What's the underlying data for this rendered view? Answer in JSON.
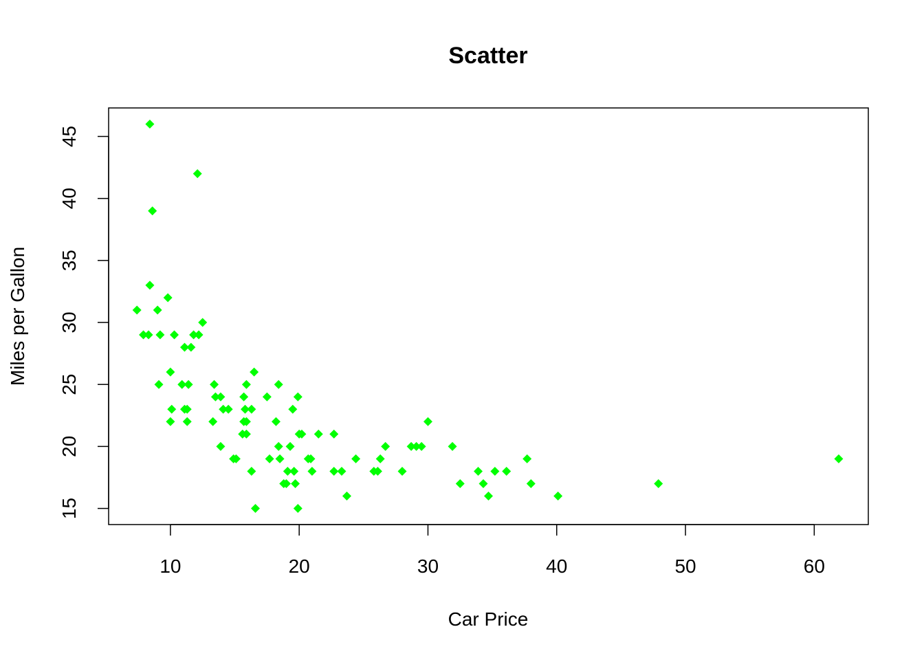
{
  "chart_data": {
    "type": "scatter",
    "title": "Scatter",
    "xlabel": "Car Price",
    "ylabel": "Miles per Gallon",
    "xlim": [
      5.2,
      64.2
    ],
    "ylim": [
      13.7,
      47.3
    ],
    "xticks": [
      10,
      20,
      30,
      40,
      50,
      60
    ],
    "yticks": [
      15,
      20,
      25,
      30,
      35,
      40,
      45
    ],
    "marker": "diamond",
    "color": "#00ff00",
    "grid": false,
    "points": [
      [
        8.4,
        46
      ],
      [
        12.1,
        42
      ],
      [
        8.6,
        39
      ],
      [
        8.4,
        33
      ],
      [
        9.8,
        32
      ],
      [
        7.4,
        31
      ],
      [
        9.0,
        31
      ],
      [
        12.5,
        30
      ],
      [
        7.9,
        29
      ],
      [
        8.3,
        29
      ],
      [
        9.2,
        29
      ],
      [
        10.3,
        29
      ],
      [
        11.8,
        29
      ],
      [
        12.2,
        29
      ],
      [
        11.1,
        28
      ],
      [
        11.6,
        28
      ],
      [
        10.0,
        26
      ],
      [
        16.5,
        26
      ],
      [
        9.1,
        25
      ],
      [
        10.9,
        25
      ],
      [
        11.4,
        25
      ],
      [
        13.4,
        25
      ],
      [
        15.9,
        25
      ],
      [
        18.4,
        25
      ],
      [
        13.5,
        24
      ],
      [
        13.9,
        24
      ],
      [
        15.7,
        24
      ],
      [
        17.5,
        24
      ],
      [
        19.9,
        24
      ],
      [
        10.1,
        23
      ],
      [
        11.1,
        23
      ],
      [
        11.3,
        23
      ],
      [
        14.1,
        23
      ],
      [
        14.5,
        23
      ],
      [
        15.8,
        23
      ],
      [
        16.3,
        23
      ],
      [
        19.5,
        23
      ],
      [
        10.0,
        22
      ],
      [
        11.3,
        22
      ],
      [
        13.3,
        22
      ],
      [
        15.7,
        22
      ],
      [
        15.9,
        22
      ],
      [
        18.2,
        22
      ],
      [
        30.0,
        22
      ],
      [
        15.6,
        21
      ],
      [
        15.9,
        21
      ],
      [
        20.0,
        21
      ],
      [
        20.2,
        21
      ],
      [
        21.5,
        21
      ],
      [
        22.7,
        21
      ],
      [
        13.9,
        20
      ],
      [
        18.4,
        20
      ],
      [
        19.3,
        20
      ],
      [
        26.7,
        20
      ],
      [
        28.7,
        20
      ],
      [
        29.1,
        20
      ],
      [
        29.5,
        20
      ],
      [
        31.9,
        20
      ],
      [
        14.9,
        19
      ],
      [
        15.1,
        19
      ],
      [
        17.7,
        19
      ],
      [
        18.5,
        19
      ],
      [
        20.7,
        19
      ],
      [
        20.9,
        19
      ],
      [
        24.4,
        19
      ],
      [
        26.3,
        19
      ],
      [
        37.7,
        19
      ],
      [
        61.9,
        19
      ],
      [
        16.3,
        18
      ],
      [
        19.1,
        18
      ],
      [
        19.6,
        18
      ],
      [
        21.0,
        18
      ],
      [
        22.7,
        18
      ],
      [
        23.3,
        18
      ],
      [
        25.8,
        18
      ],
      [
        26.1,
        18
      ],
      [
        28.0,
        18
      ],
      [
        33.9,
        18
      ],
      [
        35.2,
        18
      ],
      [
        36.1,
        18
      ],
      [
        18.8,
        17
      ],
      [
        19.0,
        17
      ],
      [
        19.7,
        17
      ],
      [
        32.5,
        17
      ],
      [
        34.3,
        17
      ],
      [
        38.0,
        17
      ],
      [
        47.9,
        17
      ],
      [
        23.7,
        16
      ],
      [
        34.7,
        16
      ],
      [
        40.1,
        16
      ],
      [
        16.6,
        15
      ],
      [
        19.9,
        15
      ]
    ]
  }
}
